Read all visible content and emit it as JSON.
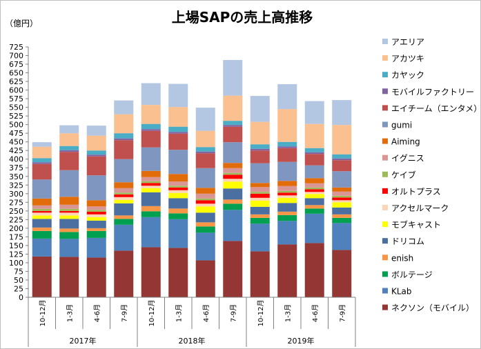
{
  "chart_data": {
    "type": "bar",
    "stacked": true,
    "title": "上場SAPの売上高推移",
    "unit_label": "（億円）",
    "ylim": [
      0,
      725
    ],
    "ytick_step": 25,
    "grid": false,
    "legend_position": "right",
    "categories": [
      "10-12月",
      "1-3月",
      "4-6月",
      "7-9月",
      "10-12月",
      "1-3月",
      "4-6月",
      "7-9月",
      "10-12月",
      "1-3月",
      "4-6月",
      "7-9月"
    ],
    "year_groups": [
      {
        "label": "2017年",
        "span": 4
      },
      {
        "label": "2018年",
        "span": 4
      },
      {
        "label": "2019年",
        "span": 4
      }
    ],
    "series": [
      {
        "name": "ネクソン（モバイル）",
        "color": "#943634",
        "values": [
          118,
          117,
          115,
          135,
          145,
          143,
          107,
          163,
          133,
          153,
          157,
          137
        ]
      },
      {
        "name": "KLab",
        "color": "#4f81bd",
        "values": [
          52,
          52,
          57,
          75,
          87,
          83,
          80,
          90,
          80,
          68,
          85,
          78
        ]
      },
      {
        "name": "ボルテージ",
        "color": "#00a050",
        "values": [
          22,
          20,
          20,
          17,
          17,
          17,
          18,
          18,
          17,
          17,
          15,
          15
        ]
      },
      {
        "name": "enish",
        "color": "#f79646",
        "values": [
          10,
          10,
          8,
          10,
          15,
          14,
          12,
          12,
          10,
          10,
          10,
          10
        ]
      },
      {
        "name": "ドリコム",
        "color": "#4a6fa0",
        "values": [
          25,
          28,
          22,
          35,
          40,
          30,
          28,
          32,
          22,
          25,
          20,
          20
        ]
      },
      {
        "name": "モブキャスト",
        "color": "#ffff00",
        "values": [
          10,
          10,
          10,
          10,
          12,
          15,
          18,
          20,
          18,
          15,
          12,
          15
        ]
      },
      {
        "name": "アクセルマーク",
        "color": "#fbd5b5",
        "values": [
          8,
          8,
          8,
          8,
          7,
          8,
          8,
          8,
          8,
          7,
          6,
          6
        ]
      },
      {
        "name": "オルトプラス",
        "color": "#ff0000",
        "values": [
          5,
          5,
          8,
          8,
          8,
          8,
          10,
          12,
          12,
          8,
          8,
          8
        ]
      },
      {
        "name": "ケイブ",
        "color": "#9bbb59",
        "values": [
          6,
          6,
          5,
          5,
          5,
          5,
          5,
          5,
          5,
          5,
          5,
          5
        ]
      },
      {
        "name": "イグニス",
        "color": "#d99694",
        "values": [
          10,
          12,
          10,
          13,
          12,
          12,
          14,
          14,
          14,
          14,
          12,
          12
        ]
      },
      {
        "name": "Aiming",
        "color": "#e26b0a",
        "values": [
          20,
          23,
          18,
          17,
          18,
          22,
          17,
          15,
          12,
          15,
          15,
          12
        ]
      },
      {
        "name": "gumi",
        "color": "#7f96c0",
        "values": [
          55,
          77,
          72,
          67,
          68,
          70,
          57,
          60,
          57,
          55,
          37,
          47
        ]
      },
      {
        "name": "エイチーム（エンタメ）",
        "color": "#c0504d",
        "values": [
          45,
          53,
          55,
          55,
          48,
          47,
          43,
          45,
          37,
          40,
          33,
          32
        ]
      },
      {
        "name": "モバイルファクトリー",
        "color": "#8064a2",
        "values": [
          5,
          5,
          5,
          5,
          5,
          5,
          5,
          5,
          5,
          5,
          5,
          5
        ]
      },
      {
        "name": "カヤック",
        "color": "#4bacc6",
        "values": [
          12,
          12,
          12,
          15,
          15,
          15,
          13,
          12,
          13,
          13,
          12,
          12
        ]
      },
      {
        "name": "アカツキ",
        "color": "#fac090",
        "values": [
          33,
          37,
          43,
          55,
          55,
          57,
          47,
          73,
          65,
          95,
          70,
          85
        ]
      },
      {
        "name": "アエリア",
        "color": "#b3c6e2",
        "values": [
          13,
          23,
          29,
          40,
          63,
          67,
          67,
          103,
          75,
          72,
          66,
          72
        ]
      }
    ]
  }
}
